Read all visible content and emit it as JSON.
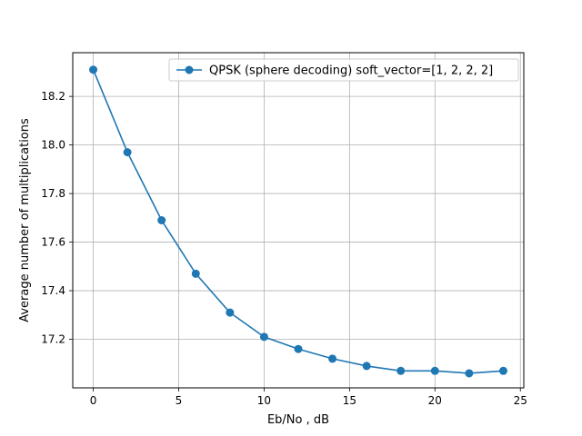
{
  "chart_data": {
    "type": "line",
    "title": "",
    "xlabel": "Eb/No , dB",
    "ylabel": "Average number of multiplications",
    "xlim": [
      -1.2,
      25.2
    ],
    "ylim": [
      17.0,
      18.38
    ],
    "x_ticks": [
      0,
      5,
      10,
      15,
      20,
      25
    ],
    "x_tick_labels": [
      "0",
      "5",
      "10",
      "15",
      "20",
      "25"
    ],
    "y_ticks": [
      17.2,
      17.4,
      17.6,
      17.8,
      18.0,
      18.2
    ],
    "y_tick_labels": [
      "17.2",
      "17.4",
      "17.6",
      "17.8",
      "18.0",
      "18.2"
    ],
    "grid": true,
    "legend_position": "top-right",
    "series": [
      {
        "name": "QPSK (sphere decoding) soft_vector=[1, 2, 2, 2]",
        "color": "#1f77b4",
        "marker": "circle",
        "x": [
          0,
          2,
          4,
          6,
          8,
          10,
          12,
          14,
          16,
          18,
          20,
          22,
          24
        ],
        "y": [
          18.31,
          17.97,
          17.69,
          17.47,
          17.31,
          17.21,
          17.16,
          17.12,
          17.09,
          17.07,
          17.07,
          17.06,
          17.07
        ]
      }
    ]
  }
}
